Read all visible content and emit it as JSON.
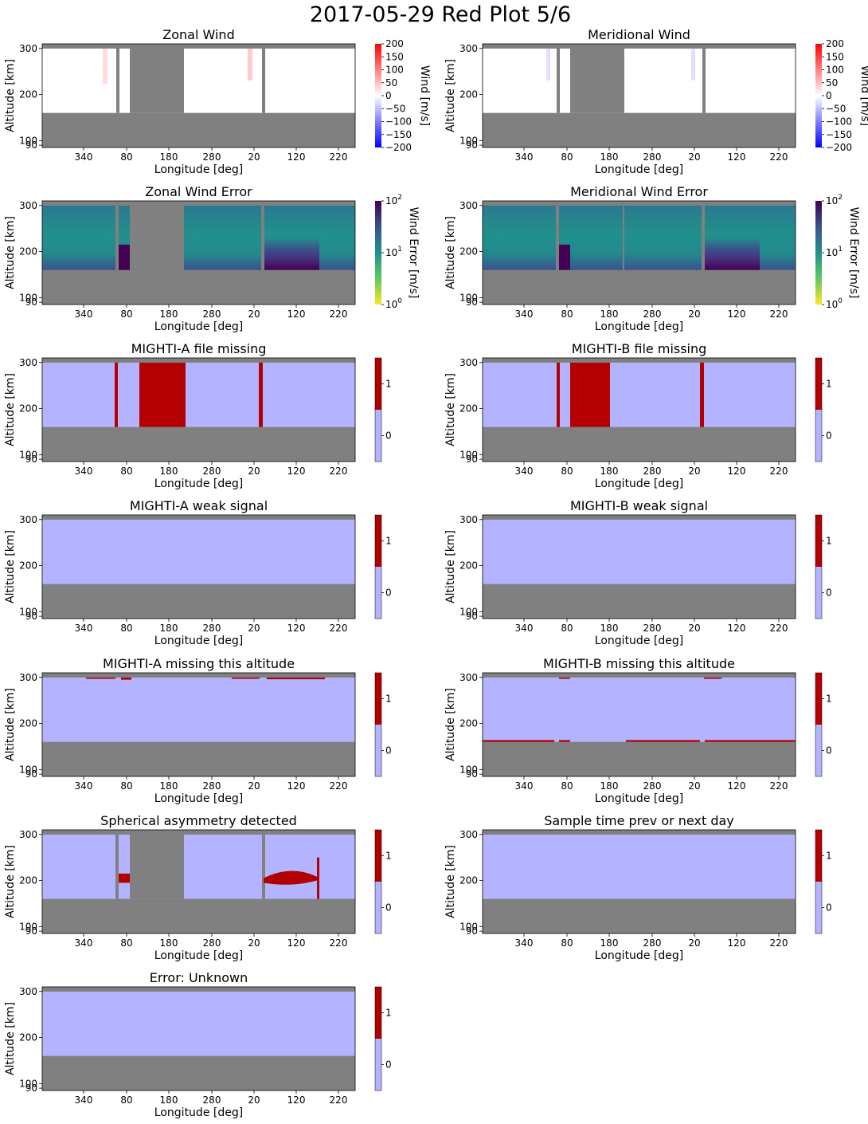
{
  "figure_title": "2017-05-29 Red Plot 5/6",
  "chart_data": [
    {
      "type": "heatmap",
      "title": "Zonal Wind",
      "xlabel": "Longitude [deg]",
      "ylabel": "Altitude [km]",
      "xticks": [
        "340",
        "80",
        "180",
        "280",
        "20",
        "120",
        "220"
      ],
      "yticks": [
        "300",
        "200",
        "100",
        "90"
      ],
      "colorbar": {
        "label": "Wind [m/s]",
        "ticks": [
          "200",
          "150",
          "100",
          "50",
          "0",
          "−50",
          "−100",
          "−150",
          "−200"
        ],
        "range": [
          -200,
          200
        ]
      },
      "colors": {
        "min": "#0000ff",
        "mid": "#ffffff",
        "max": "#ff0000",
        "no_data": "#808080"
      },
      "data_note_values": {
        "valid_altitude_km": [
          160,
          300
        ],
        "wind_m_s_typical": 0
      }
    },
    {
      "type": "heatmap",
      "title": "Meridional Wind",
      "xlabel": "Longitude [deg]",
      "ylabel": "Altitude [km]",
      "xticks": [
        "340",
        "80",
        "180",
        "280",
        "20",
        "120",
        "220"
      ],
      "yticks": [
        "300",
        "200",
        "100",
        "90"
      ],
      "colorbar": {
        "label": "Wind [m/s]",
        "ticks": [
          "200",
          "150",
          "100",
          "50",
          "0",
          "−50",
          "−100",
          "−150",
          "−200"
        ],
        "range": [
          -200,
          200
        ]
      },
      "colors": {
        "min": "#0000ff",
        "mid": "#ffffff",
        "max": "#ff0000",
        "no_data": "#808080"
      }
    },
    {
      "type": "heatmap",
      "title": "Zonal Wind Error",
      "xlabel": "Longitude [deg]",
      "ylabel": "Altitude [km]",
      "xticks": [
        "340",
        "80",
        "180",
        "280",
        "20",
        "120",
        "220"
      ],
      "yticks": [
        "300",
        "200",
        "100",
        "90"
      ],
      "colorbar": {
        "label": "Wind Error [m/s]",
        "scale": "log",
        "range": [
          1,
          100
        ],
        "ticks": [
          "10",
          "10",
          "10"
        ],
        "exponents": [
          "2",
          "1",
          "0"
        ]
      },
      "colors": {
        "low": "#fde725",
        "mid": "#21918c",
        "high": "#440154",
        "no_data": "#808080"
      }
    },
    {
      "type": "heatmap",
      "title": "Meridional Wind Error",
      "xlabel": "Longitude [deg]",
      "ylabel": "Altitude [km]",
      "xticks": [
        "340",
        "80",
        "180",
        "280",
        "20",
        "120",
        "220"
      ],
      "yticks": [
        "300",
        "200",
        "100",
        "90"
      ],
      "colorbar": {
        "label": "Wind Error [m/s]",
        "scale": "log",
        "range": [
          1,
          100
        ],
        "ticks": [
          "10",
          "10",
          "10"
        ],
        "exponents": [
          "2",
          "1",
          "0"
        ]
      },
      "colors": {
        "low": "#fde725",
        "mid": "#21918c",
        "high": "#440154",
        "no_data": "#808080"
      }
    },
    {
      "type": "heatmap",
      "title": "MIGHTI-A file missing",
      "xlabel": "Longitude [deg]",
      "ylabel": "Altitude [km]",
      "xticks": [
        "340",
        "80",
        "180",
        "280",
        "20",
        "120",
        "220"
      ],
      "yticks": [
        "300",
        "200",
        "100",
        "90"
      ],
      "colorbar": {
        "ticks": [
          "1",
          "0"
        ]
      },
      "colors": {
        "flag_0": "#b3b3ff",
        "flag_1": "#b30000",
        "no_data": "#808080"
      }
    },
    {
      "type": "heatmap",
      "title": "MIGHTI-B file missing",
      "xlabel": "Longitude [deg]",
      "ylabel": "Altitude [km]",
      "xticks": [
        "340",
        "80",
        "180",
        "280",
        "20",
        "120",
        "220"
      ],
      "yticks": [
        "300",
        "200",
        "100",
        "90"
      ],
      "colorbar": {
        "ticks": [
          "1",
          "0"
        ]
      },
      "colors": {
        "flag_0": "#b3b3ff",
        "flag_1": "#b30000",
        "no_data": "#808080"
      }
    },
    {
      "type": "heatmap",
      "title": "MIGHTI-A weak signal",
      "xlabel": "Longitude [deg]",
      "ylabel": "Altitude [km]",
      "xticks": [
        "340",
        "80",
        "180",
        "280",
        "20",
        "120",
        "220"
      ],
      "yticks": [
        "300",
        "200",
        "100",
        "90"
      ],
      "colorbar": {
        "ticks": [
          "1",
          "0"
        ]
      },
      "colors": {
        "flag_0": "#b3b3ff",
        "flag_1": "#b30000",
        "no_data": "#808080"
      }
    },
    {
      "type": "heatmap",
      "title": "MIGHTI-B weak signal",
      "xlabel": "Longitude [deg]",
      "ylabel": "Altitude [km]",
      "xticks": [
        "340",
        "80",
        "180",
        "280",
        "20",
        "120",
        "220"
      ],
      "yticks": [
        "300",
        "200",
        "100",
        "90"
      ],
      "colorbar": {
        "ticks": [
          "1",
          "0"
        ]
      },
      "colors": {
        "flag_0": "#b3b3ff",
        "flag_1": "#b30000",
        "no_data": "#808080"
      }
    },
    {
      "type": "heatmap",
      "title": "MIGHTI-A missing this altitude",
      "xlabel": "Longitude [deg]",
      "ylabel": "Altitude [km]",
      "xticks": [
        "340",
        "80",
        "180",
        "280",
        "20",
        "120",
        "220"
      ],
      "yticks": [
        "300",
        "200",
        "100",
        "90"
      ],
      "colorbar": {
        "ticks": [
          "1",
          "0"
        ]
      },
      "colors": {
        "flag_0": "#b3b3ff",
        "flag_1": "#b30000",
        "no_data": "#808080"
      }
    },
    {
      "type": "heatmap",
      "title": "MIGHTI-B missing this altitude",
      "xlabel": "Longitude [deg]",
      "ylabel": "Altitude [km]",
      "xticks": [
        "340",
        "80",
        "180",
        "280",
        "20",
        "120",
        "220"
      ],
      "yticks": [
        "300",
        "200",
        "100",
        "90"
      ],
      "colorbar": {
        "ticks": [
          "1",
          "0"
        ]
      },
      "colors": {
        "flag_0": "#b3b3ff",
        "flag_1": "#b30000",
        "no_data": "#808080"
      }
    },
    {
      "type": "heatmap",
      "title": "Spherical asymmetry detected",
      "xlabel": "Longitude [deg]",
      "ylabel": "Altitude [km]",
      "xticks": [
        "340",
        "80",
        "180",
        "280",
        "20",
        "120",
        "220"
      ],
      "yticks": [
        "300",
        "200",
        "100",
        "90"
      ],
      "colorbar": {
        "ticks": [
          "1",
          "0"
        ]
      },
      "colors": {
        "flag_0": "#b3b3ff",
        "flag_1": "#b30000",
        "no_data": "#808080"
      }
    },
    {
      "type": "heatmap",
      "title": "Sample time prev or next day",
      "xlabel": "Longitude [deg]",
      "ylabel": "Altitude [km]",
      "xticks": [
        "340",
        "80",
        "180",
        "280",
        "20",
        "120",
        "220"
      ],
      "yticks": [
        "300",
        "200",
        "100",
        "90"
      ],
      "colorbar": {
        "ticks": [
          "1",
          "0"
        ]
      },
      "colors": {
        "flag_0": "#b3b3ff",
        "flag_1": "#b30000",
        "no_data": "#808080"
      }
    },
    {
      "type": "heatmap",
      "title": "Error: Unknown",
      "xlabel": "Longitude [deg]",
      "ylabel": "Altitude [km]",
      "xticks": [
        "340",
        "80",
        "180",
        "280",
        "20",
        "120",
        "220"
      ],
      "yticks": [
        "300",
        "200",
        "100",
        "90"
      ],
      "colorbar": {
        "ticks": [
          "1",
          "0"
        ]
      },
      "colors": {
        "flag_0": "#b3b3ff",
        "flag_1": "#b30000",
        "no_data": "#808080"
      }
    }
  ]
}
